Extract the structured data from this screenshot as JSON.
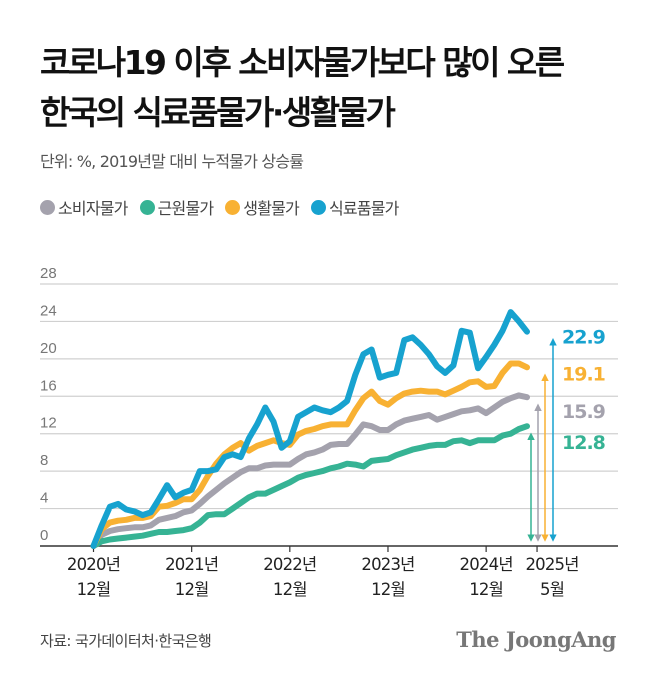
{
  "header": {
    "title_line1": "코로나19 이후 소비자물가보다 많이 오른",
    "title_line2": "한국의 식료품물가·생활물가",
    "subtitle": "단위: %, 2019년말 대비 누적물가 상승률"
  },
  "footer": {
    "source": "자료: 국가데이터처·한국은행",
    "logo": "The JoongAng"
  },
  "chart_data": {
    "type": "line",
    "title": "코로나19 이후 소비자물가보다 많이 오른 한국의 식료품물가·생활물가",
    "unit": "단위: %, 2019년말 대비 누적물가 상승률",
    "x_start": "2020-12",
    "x_end": "2025-05",
    "x_frequency": "monthly",
    "ylim": [
      0,
      28
    ],
    "y_ticks": [
      0,
      4,
      8,
      12,
      16,
      20,
      24,
      28
    ],
    "grid": true,
    "legend_position": "top-left",
    "x_ticks": [
      {
        "line1": "2020년",
        "line2": "12월",
        "date": "2020-12"
      },
      {
        "line1": "2021년",
        "line2": "12월",
        "date": "2021-12"
      },
      {
        "line1": "2022년",
        "line2": "12월",
        "date": "2022-12"
      },
      {
        "line1": "2023년",
        "line2": "12월",
        "date": "2023-12"
      },
      {
        "line1": "2024년",
        "line2": "12월",
        "date": "2024-12"
      },
      {
        "line1": "2025년",
        "line2": "5월",
        "date": "2025-05"
      }
    ],
    "series": [
      {
        "name": "소비자물가",
        "color": "#a4a2ad",
        "end_label": "15.9",
        "values": [
          0,
          1.2,
          1.6,
          1.8,
          1.9,
          2.0,
          2.0,
          2.2,
          2.8,
          3.0,
          3.2,
          3.6,
          3.8,
          4.5,
          5.3,
          6.0,
          6.7,
          7.3,
          7.9,
          8.3,
          8.3,
          8.6,
          8.7,
          8.7,
          8.7,
          9.3,
          9.8,
          10.0,
          10.3,
          10.8,
          10.9,
          10.9,
          11.9,
          13.0,
          12.8,
          12.4,
          12.4,
          13.0,
          13.4,
          13.6,
          13.8,
          14.0,
          13.5,
          13.8,
          14.1,
          14.4,
          14.5,
          14.7,
          14.2,
          14.8,
          15.4,
          15.8,
          16.1,
          15.9
        ]
      },
      {
        "name": "근원물가",
        "color": "#36b394",
        "end_label": "12.8",
        "values": [
          0,
          0.5,
          0.7,
          0.8,
          0.9,
          1.0,
          1.1,
          1.3,
          1.5,
          1.5,
          1.6,
          1.7,
          1.9,
          2.5,
          3.3,
          3.4,
          3.4,
          4.0,
          4.6,
          5.2,
          5.6,
          5.6,
          6.0,
          6.4,
          6.8,
          7.3,
          7.6,
          7.8,
          8.0,
          8.3,
          8.5,
          8.8,
          8.7,
          8.5,
          9.1,
          9.2,
          9.3,
          9.7,
          10.0,
          10.3,
          10.5,
          10.7,
          10.8,
          10.8,
          11.2,
          11.3,
          11.0,
          11.3,
          11.3,
          11.3,
          11.8,
          12.0,
          12.5,
          12.8
        ]
      },
      {
        "name": "생활물가",
        "color": "#f8b133",
        "end_label": "19.1",
        "values": [
          0,
          1.8,
          2.5,
          2.7,
          2.8,
          3.0,
          3.0,
          3.2,
          4.2,
          4.3,
          4.6,
          5.0,
          5.0,
          6.0,
          7.5,
          8.8,
          9.8,
          10.5,
          11.0,
          10.2,
          10.7,
          11.0,
          11.3,
          11.0,
          10.8,
          11.9,
          12.3,
          12.5,
          12.8,
          13.0,
          13.0,
          13.0,
          14.5,
          15.8,
          16.5,
          15.5,
          15.1,
          15.8,
          16.3,
          16.5,
          16.6,
          16.5,
          16.5,
          16.2,
          16.6,
          17.0,
          17.5,
          17.6,
          17.0,
          17.1,
          18.5,
          19.5,
          19.5,
          19.1
        ]
      },
      {
        "name": "식료품물가",
        "color": "#17a2cf",
        "end_label": "22.9",
        "values": [
          0,
          2.2,
          4.2,
          4.5,
          3.9,
          3.7,
          3.3,
          3.6,
          5.0,
          6.5,
          5.2,
          5.7,
          6.0,
          8.0,
          8.0,
          8.2,
          9.5,
          9.8,
          9.5,
          11.5,
          13.0,
          14.8,
          13.3,
          10.5,
          11.2,
          13.8,
          14.3,
          14.8,
          14.5,
          14.3,
          14.8,
          15.5,
          18.3,
          20.5,
          21.0,
          18.0,
          18.3,
          18.5,
          22.0,
          22.3,
          21.5,
          20.5,
          19.2,
          18.5,
          19.3,
          23.0,
          22.8,
          19.0,
          20.2,
          21.5,
          23.0,
          25.0,
          24.0,
          22.9
        ]
      }
    ]
  }
}
